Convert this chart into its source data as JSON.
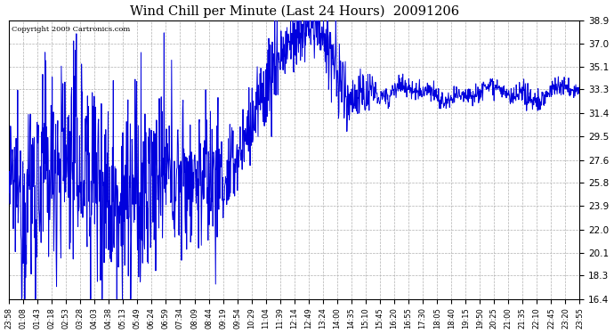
{
  "title": "Wind Chill per Minute (Last 24 Hours)  20091206",
  "copyright": "Copyright 2009 Cartronics.com",
  "ylim": [
    16.4,
    38.9
  ],
  "yticks": [
    16.4,
    18.3,
    20.1,
    22.0,
    23.9,
    25.8,
    27.6,
    29.5,
    31.4,
    33.3,
    35.1,
    37.0,
    38.9
  ],
  "line_color": "#0000dd",
  "bg_color": "#ffffff",
  "grid_color": "#b0b0b0",
  "title_color": "#000000",
  "copyright_color": "#000000",
  "x_tick_labels": [
    "23:58",
    "01:08",
    "01:43",
    "02:18",
    "02:53",
    "03:28",
    "04:03",
    "04:38",
    "05:13",
    "05:49",
    "06:24",
    "06:59",
    "07:34",
    "08:09",
    "08:44",
    "09:19",
    "09:54",
    "10:29",
    "11:04",
    "11:39",
    "12:14",
    "12:49",
    "13:24",
    "14:00",
    "14:35",
    "15:10",
    "15:45",
    "16:20",
    "16:55",
    "17:30",
    "18:05",
    "18:40",
    "19:15",
    "19:50",
    "20:25",
    "21:00",
    "21:35",
    "22:10",
    "22:45",
    "23:20",
    "23:55"
  ],
  "n_points": 1440,
  "seed": 12345
}
